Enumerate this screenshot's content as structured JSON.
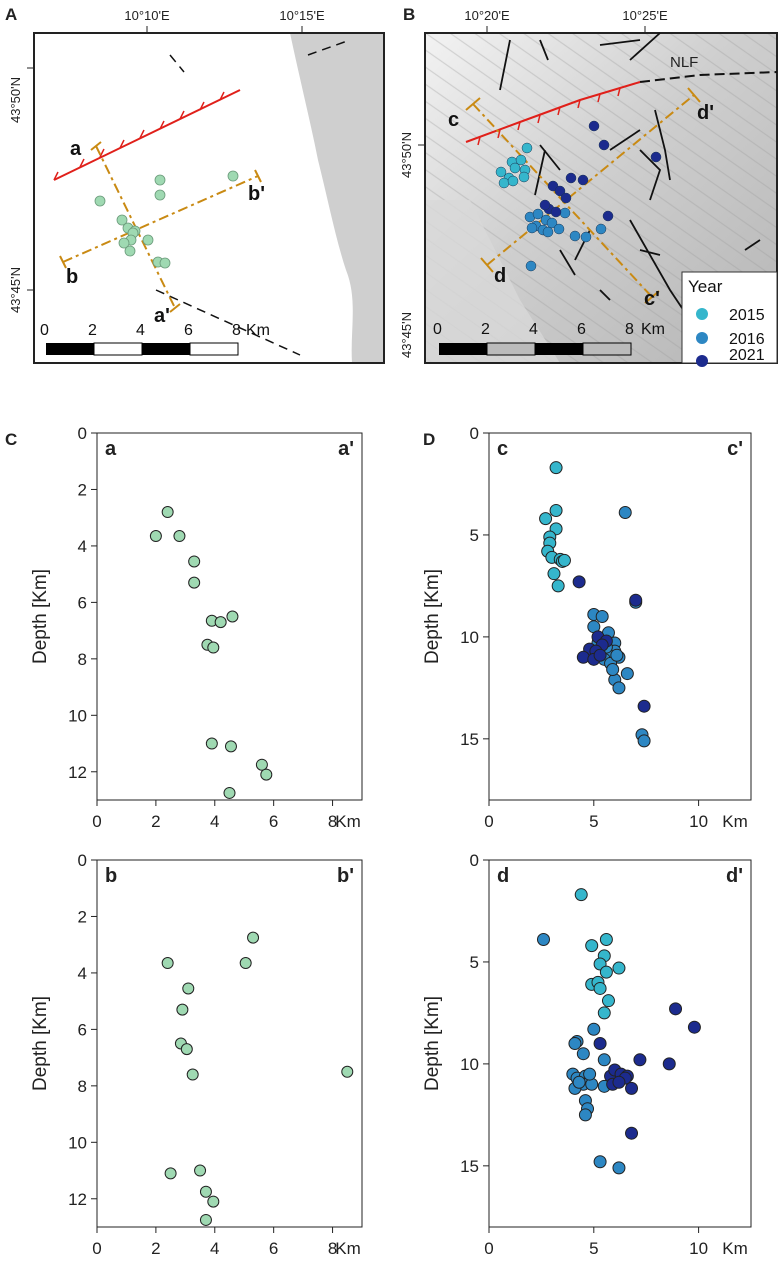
{
  "panels": {
    "A": "A",
    "B": "B",
    "C": "C",
    "D": "D"
  },
  "colors": {
    "green": "#9fd9b2",
    "c2015": "#35b6cc",
    "c2016": "#2d87c3",
    "c2021": "#1c2b8e",
    "red_fault": "#e0201a",
    "section_line": "#c98a13"
  },
  "mapA": {
    "top_ticks": [
      "10°10'E",
      "10°15'E"
    ],
    "left_ticks": [
      "43°50'N",
      "43°45'N"
    ],
    "sections": {
      "a": "a",
      "a_prime": "a'",
      "b": "b",
      "b_prime": "b'"
    },
    "scalebar": {
      "labels": [
        "0",
        "2",
        "4",
        "6",
        "8"
      ],
      "unit": "Km"
    },
    "events": [
      [
        100,
        201
      ],
      [
        160,
        180
      ],
      [
        160,
        195
      ],
      [
        233,
        176
      ],
      [
        122,
        220
      ],
      [
        128,
        228
      ],
      [
        135,
        231
      ],
      [
        133,
        233
      ],
      [
        131,
        240
      ],
      [
        124,
        243
      ],
      [
        148,
        240
      ],
      [
        130,
        251
      ],
      [
        158,
        262
      ],
      [
        165,
        263
      ]
    ]
  },
  "mapB": {
    "top_ticks": [
      "10°20'E",
      "10°25'E"
    ],
    "left_ticks": [
      "43°50'N",
      "43°45'N"
    ],
    "fault_label": "NLF",
    "sections": {
      "c": "c",
      "c_prime": "c'",
      "d": "d",
      "d_prime": "d'"
    },
    "scalebar": {
      "labels": [
        "0",
        "2",
        "4",
        "6",
        "8"
      ],
      "unit": "Km"
    },
    "legend": {
      "title": "Year",
      "entries": [
        {
          "label": "2015",
          "year": "2015"
        },
        {
          "label": "2016",
          "year": "2016"
        },
        {
          "label": "2021",
          "year": "2021"
        }
      ]
    },
    "events": [
      {
        "x": 501,
        "y": 172,
        "y2": "2015"
      },
      {
        "x": 512,
        "y": 162,
        "y2": "2015"
      },
      {
        "x": 521,
        "y": 160,
        "y2": "2015"
      },
      {
        "x": 527,
        "y": 148,
        "y2": "2015"
      },
      {
        "x": 509,
        "y": 178,
        "y2": "2015"
      },
      {
        "x": 515,
        "y": 168,
        "y2": "2015"
      },
      {
        "x": 525,
        "y": 170,
        "y2": "2015"
      },
      {
        "x": 504,
        "y": 183,
        "y2": "2015"
      },
      {
        "x": 524,
        "y": 177,
        "y2": "2015"
      },
      {
        "x": 513,
        "y": 181,
        "y2": "2015"
      },
      {
        "x": 530,
        "y": 217,
        "y2": "2016"
      },
      {
        "x": 538,
        "y": 214,
        "y2": "2016"
      },
      {
        "x": 546,
        "y": 220,
        "y2": "2016"
      },
      {
        "x": 536,
        "y": 226,
        "y2": "2016"
      },
      {
        "x": 552,
        "y": 223,
        "y2": "2016"
      },
      {
        "x": 543,
        "y": 230,
        "y2": "2016"
      },
      {
        "x": 559,
        "y": 229,
        "y2": "2016"
      },
      {
        "x": 575,
        "y": 236,
        "y2": "2016"
      },
      {
        "x": 586,
        "y": 237,
        "y2": "2016"
      },
      {
        "x": 601,
        "y": 229,
        "y2": "2016"
      },
      {
        "x": 531,
        "y": 266,
        "y2": "2016"
      },
      {
        "x": 548,
        "y": 232,
        "y2": "2016"
      },
      {
        "x": 565,
        "y": 213,
        "y2": "2016"
      },
      {
        "x": 532,
        "y": 228,
        "y2": "2016"
      },
      {
        "x": 553,
        "y": 186,
        "y2": "2021"
      },
      {
        "x": 560,
        "y": 191,
        "y2": "2021"
      },
      {
        "x": 571,
        "y": 178,
        "y2": "2021"
      },
      {
        "x": 583,
        "y": 180,
        "y2": "2021"
      },
      {
        "x": 594,
        "y": 126,
        "y2": "2021"
      },
      {
        "x": 604,
        "y": 145,
        "y2": "2021"
      },
      {
        "x": 656,
        "y": 157,
        "y2": "2021"
      },
      {
        "x": 608,
        "y": 216,
        "y2": "2021"
      },
      {
        "x": 549,
        "y": 209,
        "y2": "2021"
      },
      {
        "x": 545,
        "y": 205,
        "y2": "2021"
      },
      {
        "x": 556,
        "y": 212,
        "y2": "2021"
      },
      {
        "x": 566,
        "y": 198,
        "y2": "2021"
      }
    ]
  },
  "chart_data": [
    {
      "id": "C-aa",
      "type": "scatter",
      "section_start": "a",
      "section_end": "a'",
      "ylabel": "Depth [Km]",
      "xunit": "Km",
      "xlim": [
        0,
        9
      ],
      "ylim": [
        13,
        0
      ],
      "xticks": [
        "0",
        "2",
        "4",
        "6",
        "8"
      ],
      "xtick_values": [
        0,
        2,
        4,
        6,
        8
      ],
      "yticks": [
        "0",
        "2",
        "4",
        "6",
        "8",
        "10",
        "12"
      ],
      "ytick_values": [
        0,
        2,
        4,
        6,
        8,
        10,
        12
      ],
      "points": [
        {
          "x": 2.4,
          "y": 2.8
        },
        {
          "x": 2.0,
          "y": 3.65
        },
        {
          "x": 2.8,
          "y": 3.65
        },
        {
          "x": 3.3,
          "y": 4.55
        },
        {
          "x": 3.3,
          "y": 5.3
        },
        {
          "x": 3.9,
          "y": 6.65
        },
        {
          "x": 4.2,
          "y": 6.7
        },
        {
          "x": 4.6,
          "y": 6.5
        },
        {
          "x": 3.75,
          "y": 7.5
        },
        {
          "x": 3.95,
          "y": 7.6
        },
        {
          "x": 3.9,
          "y": 11.0
        },
        {
          "x": 4.55,
          "y": 11.1
        },
        {
          "x": 5.6,
          "y": 11.75
        },
        {
          "x": 5.75,
          "y": 12.1
        },
        {
          "x": 4.5,
          "y": 12.75
        }
      ]
    },
    {
      "id": "C-bb",
      "type": "scatter",
      "section_start": "b",
      "section_end": "b'",
      "ylabel": "Depth [Km]",
      "xunit": "Km",
      "xlim": [
        0,
        9
      ],
      "ylim": [
        13,
        0
      ],
      "xticks": [
        "0",
        "2",
        "4",
        "6",
        "8"
      ],
      "xtick_values": [
        0,
        2,
        4,
        6,
        8
      ],
      "yticks": [
        "0",
        "2",
        "4",
        "6",
        "8",
        "10",
        "12"
      ],
      "ytick_values": [
        0,
        2,
        4,
        6,
        8,
        10,
        12
      ],
      "points": [
        {
          "x": 5.3,
          "y": 2.75
        },
        {
          "x": 2.4,
          "y": 3.65
        },
        {
          "x": 5.05,
          "y": 3.65
        },
        {
          "x": 3.1,
          "y": 4.55
        },
        {
          "x": 2.9,
          "y": 5.3
        },
        {
          "x": 2.85,
          "y": 6.5
        },
        {
          "x": 3.05,
          "y": 6.7
        },
        {
          "x": 3.25,
          "y": 7.6
        },
        {
          "x": 8.5,
          "y": 7.5
        },
        {
          "x": 2.5,
          "y": 11.1
        },
        {
          "x": 3.5,
          "y": 11.0
        },
        {
          "x": 3.7,
          "y": 11.75
        },
        {
          "x": 3.95,
          "y": 12.1
        },
        {
          "x": 3.7,
          "y": 12.75
        }
      ]
    },
    {
      "id": "D-cc",
      "type": "scatter",
      "section_start": "c",
      "section_end": "c'",
      "ylabel": "Depth [Km]",
      "xunit": "Km",
      "xlim": [
        0,
        12.5
      ],
      "ylim": [
        18,
        0
      ],
      "xticks": [
        "0",
        "5",
        "10"
      ],
      "xtick_values": [
        0,
        5,
        10
      ],
      "yticks": [
        "0",
        "5",
        "10",
        "15"
      ],
      "ytick_values": [
        0,
        5,
        10,
        15
      ],
      "legend": [
        "2015",
        "2016",
        "2021"
      ],
      "series": [
        {
          "name": "2015",
          "points": [
            {
              "x": 3.2,
              "y": 1.7
            },
            {
              "x": 3.2,
              "y": 3.8
            },
            {
              "x": 2.7,
              "y": 4.2
            },
            {
              "x": 3.2,
              "y": 4.7
            },
            {
              "x": 2.9,
              "y": 5.1
            },
            {
              "x": 2.9,
              "y": 5.4
            },
            {
              "x": 2.8,
              "y": 5.8
            },
            {
              "x": 3.0,
              "y": 6.1
            },
            {
              "x": 3.4,
              "y": 6.2
            },
            {
              "x": 3.5,
              "y": 6.3
            },
            {
              "x": 3.1,
              "y": 6.9
            },
            {
              "x": 3.3,
              "y": 7.5
            },
            {
              "x": 3.6,
              "y": 6.25
            }
          ]
        },
        {
          "name": "2016",
          "points": [
            {
              "x": 6.5,
              "y": 3.9
            },
            {
              "x": 7.0,
              "y": 8.3
            },
            {
              "x": 5.0,
              "y": 8.9
            },
            {
              "x": 5.4,
              "y": 9.0
            },
            {
              "x": 5.0,
              "y": 9.5
            },
            {
              "x": 5.7,
              "y": 9.8
            },
            {
              "x": 6.0,
              "y": 10.3
            },
            {
              "x": 5.3,
              "y": 10.6
            },
            {
              "x": 6.0,
              "y": 10.7
            },
            {
              "x": 5.7,
              "y": 10.9
            },
            {
              "x": 6.2,
              "y": 11.0
            },
            {
              "x": 5.5,
              "y": 11.1
            },
            {
              "x": 5.8,
              "y": 11.3
            },
            {
              "x": 6.6,
              "y": 11.8
            },
            {
              "x": 6.0,
              "y": 12.1
            },
            {
              "x": 6.2,
              "y": 12.5
            },
            {
              "x": 7.3,
              "y": 14.8
            },
            {
              "x": 7.4,
              "y": 15.1
            },
            {
              "x": 5.2,
              "y": 10.3
            },
            {
              "x": 5.6,
              "y": 10.5
            },
            {
              "x": 6.1,
              "y": 10.9
            },
            {
              "x": 5.9,
              "y": 11.6
            }
          ]
        },
        {
          "name": "2021",
          "points": [
            {
              "x": 4.3,
              "y": 7.3
            },
            {
              "x": 7.0,
              "y": 8.2
            },
            {
              "x": 5.2,
              "y": 10.0
            },
            {
              "x": 5.6,
              "y": 10.2
            },
            {
              "x": 5.4,
              "y": 10.4
            },
            {
              "x": 4.8,
              "y": 10.6
            },
            {
              "x": 5.1,
              "y": 10.7
            },
            {
              "x": 4.5,
              "y": 11.0
            },
            {
              "x": 5.0,
              "y": 11.1
            },
            {
              "x": 7.4,
              "y": 13.4
            },
            {
              "x": 5.3,
              "y": 10.9
            }
          ]
        }
      ]
    },
    {
      "id": "D-dd",
      "type": "scatter",
      "section_start": "d",
      "section_end": "d'",
      "ylabel": "Depth [Km]",
      "xunit": "Km",
      "xlim": [
        0,
        12.5
      ],
      "ylim": [
        18,
        0
      ],
      "xticks": [
        "0",
        "5",
        "10"
      ],
      "xtick_values": [
        0,
        5,
        10
      ],
      "yticks": [
        "0",
        "5",
        "10",
        "15"
      ],
      "ytick_values": [
        0,
        5,
        10,
        15
      ],
      "series": [
        {
          "name": "2015",
          "points": [
            {
              "x": 4.4,
              "y": 1.7
            },
            {
              "x": 5.6,
              "y": 3.9
            },
            {
              "x": 5.5,
              "y": 4.7
            },
            {
              "x": 4.9,
              "y": 4.2
            },
            {
              "x": 5.3,
              "y": 5.1
            },
            {
              "x": 5.6,
              "y": 5.5
            },
            {
              "x": 6.2,
              "y": 5.3
            },
            {
              "x": 4.9,
              "y": 6.1
            },
            {
              "x": 5.2,
              "y": 6.0
            },
            {
              "x": 5.3,
              "y": 6.3
            },
            {
              "x": 5.7,
              "y": 6.9
            },
            {
              "x": 5.5,
              "y": 7.5
            }
          ]
        },
        {
          "name": "2016",
          "points": [
            {
              "x": 2.6,
              "y": 3.9
            },
            {
              "x": 5.0,
              "y": 8.3
            },
            {
              "x": 4.2,
              "y": 8.9
            },
            {
              "x": 4.1,
              "y": 9.0
            },
            {
              "x": 4.5,
              "y": 9.5
            },
            {
              "x": 5.5,
              "y": 9.8
            },
            {
              "x": 4.0,
              "y": 10.5
            },
            {
              "x": 4.2,
              "y": 10.7
            },
            {
              "x": 4.6,
              "y": 10.6
            },
            {
              "x": 4.5,
              "y": 11.0
            },
            {
              "x": 4.1,
              "y": 11.2
            },
            {
              "x": 4.9,
              "y": 11.0
            },
            {
              "x": 5.5,
              "y": 11.1
            },
            {
              "x": 4.6,
              "y": 11.8
            },
            {
              "x": 4.7,
              "y": 12.2
            },
            {
              "x": 4.6,
              "y": 12.5
            },
            {
              "x": 5.3,
              "y": 14.8
            },
            {
              "x": 6.2,
              "y": 15.1
            },
            {
              "x": 4.3,
              "y": 10.9
            },
            {
              "x": 4.8,
              "y": 10.5
            }
          ]
        },
        {
          "name": "2021",
          "points": [
            {
              "x": 8.9,
              "y": 7.3
            },
            {
              "x": 9.8,
              "y": 8.2
            },
            {
              "x": 7.2,
              "y": 9.8
            },
            {
              "x": 8.6,
              "y": 10.0
            },
            {
              "x": 5.3,
              "y": 9.0
            },
            {
              "x": 5.8,
              "y": 10.6
            },
            {
              "x": 6.0,
              "y": 10.3
            },
            {
              "x": 6.3,
              "y": 10.5
            },
            {
              "x": 6.6,
              "y": 10.6
            },
            {
              "x": 6.8,
              "y": 11.2
            },
            {
              "x": 5.9,
              "y": 11.0
            },
            {
              "x": 6.8,
              "y": 13.4
            },
            {
              "x": 6.5,
              "y": 10.7
            },
            {
              "x": 6.2,
              "y": 10.9
            }
          ]
        }
      ]
    }
  ]
}
